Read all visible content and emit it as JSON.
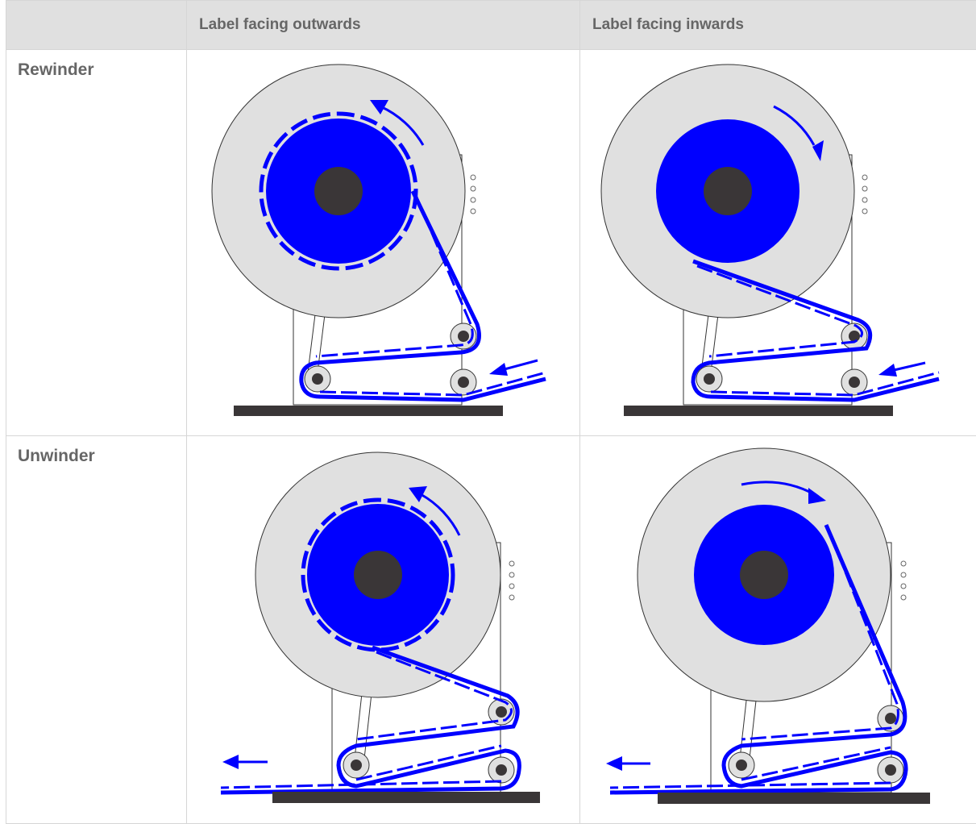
{
  "table": {
    "header": {
      "corner": "",
      "col_outwards": "Label facing outwards",
      "col_inwards": "Label facing inwards"
    },
    "rows": [
      {
        "label": "Rewinder"
      },
      {
        "label": "Unwinder"
      }
    ]
  },
  "colors": {
    "header_bg": "#e0e0e0",
    "header_text": "#666666",
    "label_roll": "#0000ff",
    "disc": "#e0e0e0",
    "hub": "#3a3637",
    "base": "#3a3637"
  }
}
